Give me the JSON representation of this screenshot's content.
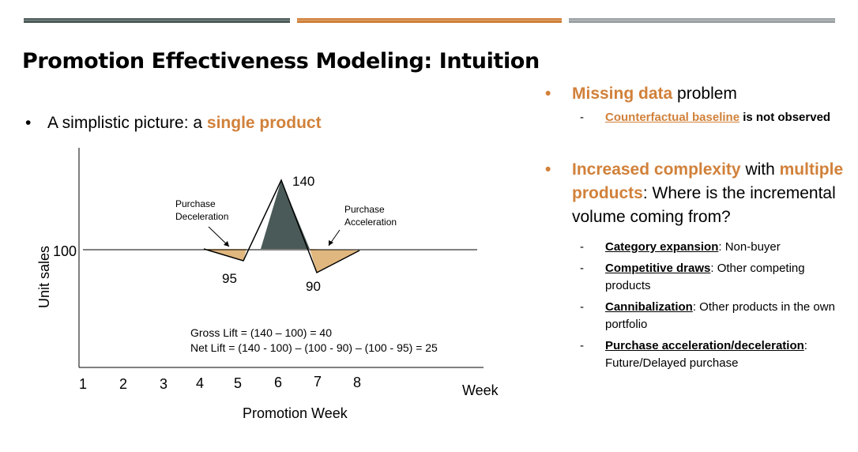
{
  "slide": {
    "title": "Promotion Effectiveness Modeling: Intuition",
    "accent_colors": {
      "dark": "#4a5a58",
      "orange": "#d1813a",
      "gray": "#9aa1a3",
      "fill": "#e0b77f"
    }
  },
  "left_bullet": {
    "prefix": "A simplistic picture: a ",
    "highlight": "single product"
  },
  "diagram": {
    "y_axis_label": "Unit sales",
    "x_axis_label": "Promotion Week",
    "week_label": "Week",
    "baseline_label": "100",
    "weeks": [
      "1",
      "2",
      "3",
      "4",
      "5",
      "6",
      "7",
      "8"
    ],
    "points": {
      "dip1": "95",
      "peak": "140",
      "dip2": "90"
    },
    "annotations": {
      "decel_line1": "Purchase",
      "decel_line2": "Deceleration",
      "accel_line1": "Purchase",
      "accel_line2": "Acceleration"
    },
    "gross_lift": "Gross Lift = (140 – 100) = 40",
    "net_lift": "Net Lift = (140 - 100) – (100  - 90) – (100  - 95)  = 25"
  },
  "right": {
    "b1": {
      "highlight": "Missing data",
      "rest": " problem"
    },
    "b1_sub": {
      "highlight": "Counterfactual baseline",
      "rest": " is not observed"
    },
    "b2": {
      "h1": "Increased complexity",
      "t1": " with ",
      "h2": "multiple products",
      "t2": ": Where is the incremental volume coming from?"
    },
    "subs": [
      {
        "term": "Category expansion",
        "desc": ": Non-buyer"
      },
      {
        "term": "Competitive draws",
        "desc": ": Other competing products"
      },
      {
        "term": "Cannibalization",
        "desc": ": Other products in the own portfolio"
      },
      {
        "term": "Purchase acceleration/deceleration",
        "desc": ": Future/Delayed purchase"
      }
    ],
    "bullet_symbol": "•",
    "dash_symbol": "-"
  }
}
